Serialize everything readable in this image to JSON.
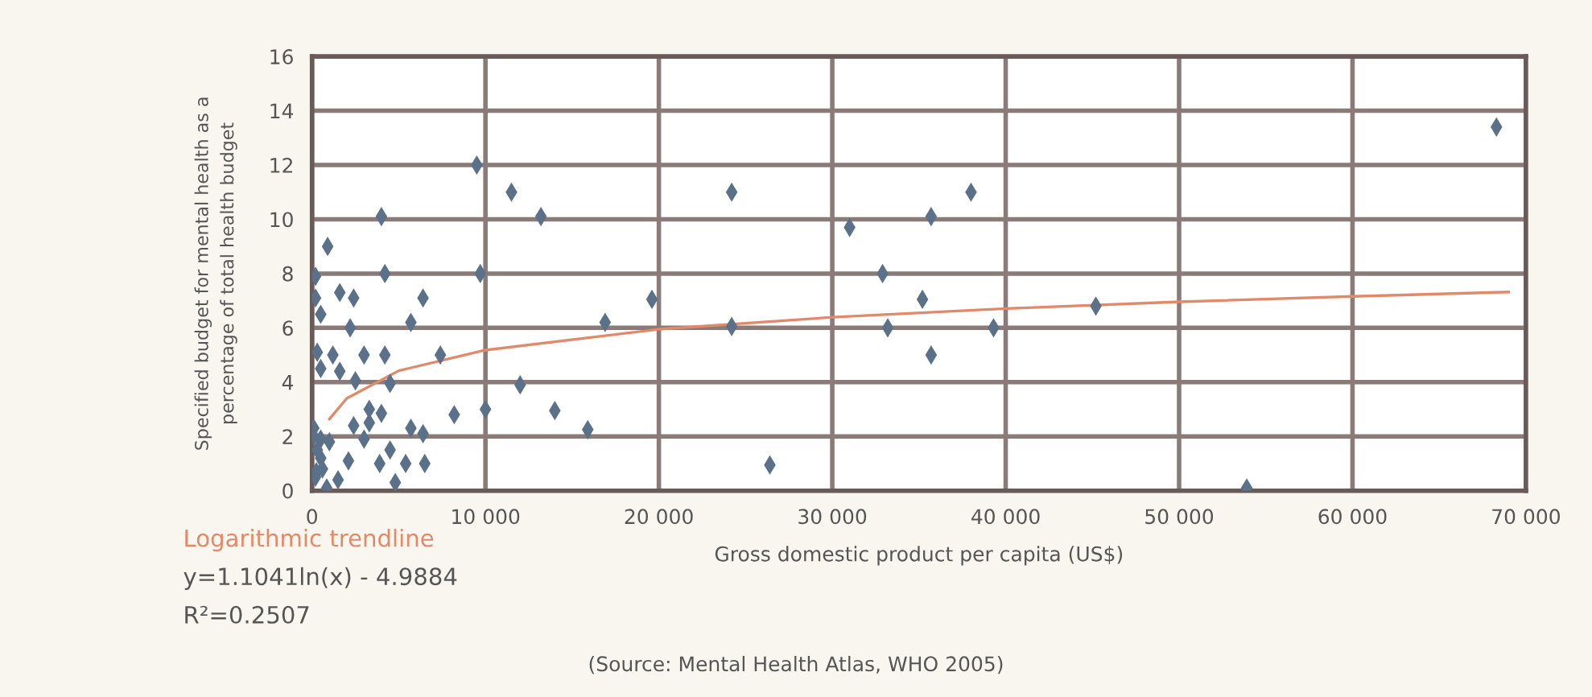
{
  "chart_data": {
    "type": "scatter",
    "xlabel": "Gross domestic product per capita (US$)",
    "ylabel": "Specified budget for mental health as a\npercentage of total health budget",
    "annotations": [
      "y=1.1041ln(x) - 4.9884",
      "R²=0.2507",
      "(Source: Mental Health Atlas, WHO 2005)"
    ],
    "xlim": [
      0,
      70000
    ],
    "ylim": [
      0,
      16
    ],
    "xticks": [
      0,
      {
        "value": 10000,
        "label": "10 000"
      },
      {
        "value": 20000,
        "label": "20 000"
      },
      {
        "value": 30000,
        "label": "30 000"
      },
      {
        "value": 40000,
        "label": "40 000"
      },
      {
        "value": 50000,
        "label": "50 000"
      },
      {
        "value": 60000,
        "label": "60 000"
      },
      {
        "value": 70000,
        "label": "70 000"
      }
    ],
    "yticks": [
      0,
      2,
      4,
      6,
      8,
      10,
      12,
      14,
      16
    ],
    "grid": true,
    "marker": "diamond",
    "series": [
      {
        "color": "#5b7189",
        "x": [
          9500,
          11500,
          4000,
          900,
          200,
          4200,
          9700,
          200,
          1600,
          2400,
          6400,
          500,
          5700,
          2200,
          300,
          1200,
          3000,
          4200,
          7400,
          500,
          1600,
          2500,
          4500,
          3300,
          4000,
          8200,
          10000,
          100,
          2400,
          3300,
          5700,
          6400,
          500,
          3000,
          4500,
          500,
          2100,
          3900,
          5400,
          6500,
          4800,
          250,
          850,
          100,
          300,
          200,
          600,
          1000,
          1500,
          12000,
          13200,
          14000,
          15900,
          16900,
          19600,
          24200,
          24200,
          26400,
          31000,
          32900,
          33200,
          35200,
          35700,
          35700,
          38000,
          39300,
          45200,
          53900,
          68300
        ],
        "values": [
          12.0,
          11.0,
          10.1,
          9.0,
          7.9,
          8.0,
          8.0,
          7.1,
          7.3,
          7.1,
          7.1,
          6.5,
          6.2,
          6.0,
          5.1,
          5.0,
          5.0,
          5.0,
          5.0,
          4.5,
          4.4,
          4.05,
          3.95,
          3.0,
          2.85,
          2.8,
          3.0,
          2.3,
          2.4,
          2.5,
          2.3,
          2.1,
          1.9,
          1.9,
          1.5,
          1.2,
          1.1,
          1.0,
          1.0,
          1.0,
          0.3,
          0.7,
          0.1,
          2.0,
          1.5,
          0.5,
          0.8,
          1.8,
          0.4,
          3.9,
          10.1,
          2.95,
          2.25,
          6.2,
          7.05,
          11.0,
          6.05,
          0.95,
          9.7,
          8.0,
          6.0,
          7.05,
          10.1,
          5.0,
          11.0,
          6.0,
          6.8,
          0.1,
          13.4
        ]
      },
      {
        "type": "line",
        "name": "Logarithmic trendline",
        "color": "#e08a6a",
        "marker": "none",
        "x": [
          1000,
          2000,
          5000,
          10000,
          20000,
          30000,
          40000,
          50000,
          60000,
          69000
        ],
        "values": [
          2.64,
          3.4,
          4.42,
          5.18,
          5.95,
          6.39,
          6.71,
          6.96,
          7.16,
          7.32
        ]
      }
    ]
  }
}
